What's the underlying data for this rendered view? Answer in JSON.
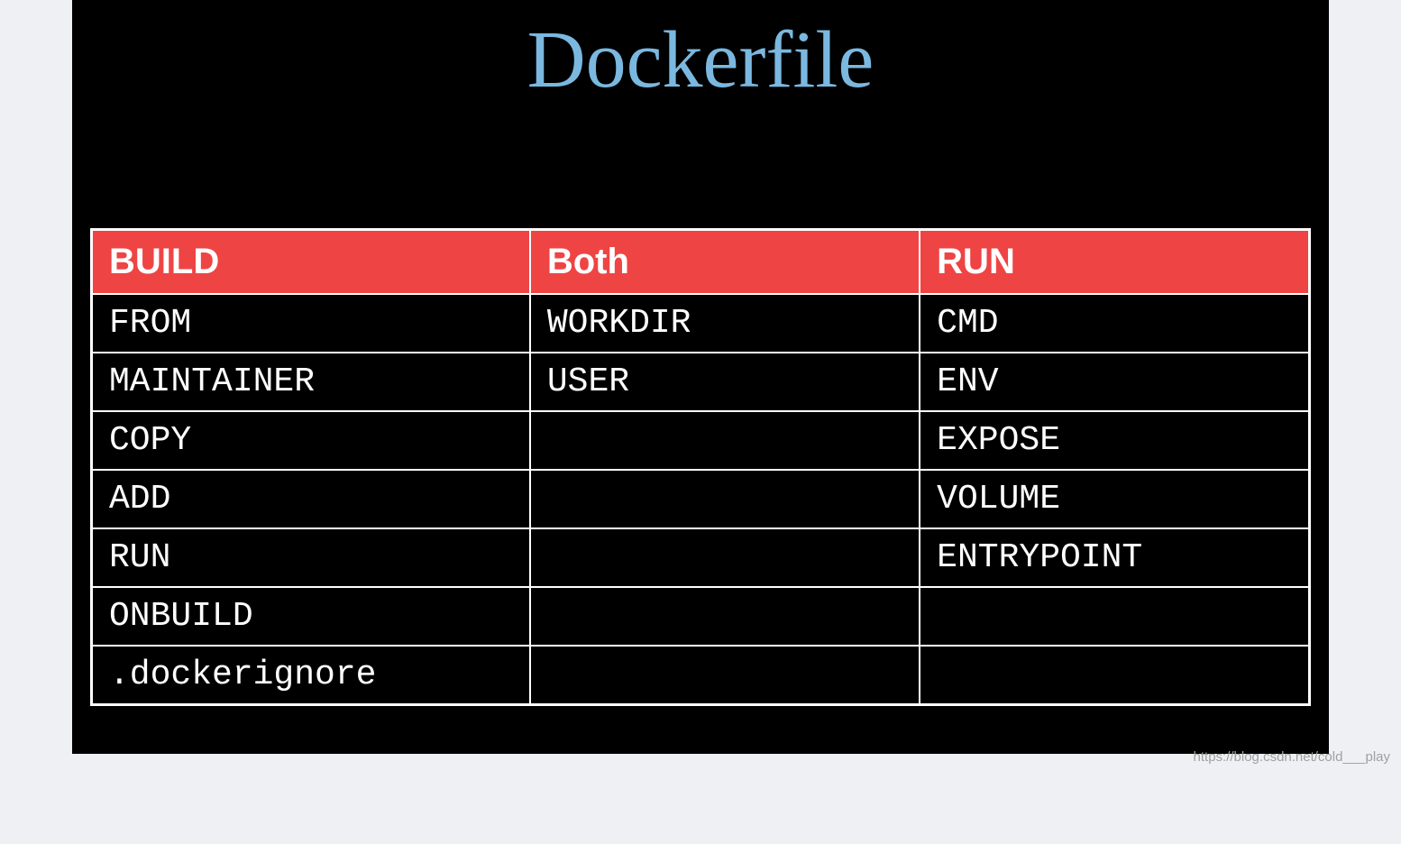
{
  "slide": {
    "title": "Dockerfile",
    "title_color": "#7ab8e0",
    "title_fontsize": 90,
    "title_font": "Georgia, serif",
    "background_color": "#000000"
  },
  "page_background": "#eef0f4",
  "table": {
    "type": "table",
    "header_bg_color": "#ef4444",
    "header_text_color": "#ffffff",
    "header_font": "Arial, sans-serif",
    "header_fontsize": 40,
    "header_fontweight": 700,
    "cell_bg_color": "#000000",
    "cell_text_color": "#ffffff",
    "cell_font": "Courier New, monospace",
    "cell_fontsize": 38,
    "border_color": "#ffffff",
    "border_width": 2,
    "columns": [
      "BUILD",
      "Both",
      "RUN"
    ],
    "column_widths_pct": [
      36,
      32,
      32
    ],
    "rows": [
      [
        "FROM",
        "WORKDIR",
        "CMD"
      ],
      [
        "MAINTAINER",
        "USER",
        "ENV"
      ],
      [
        "COPY",
        "",
        "EXPOSE"
      ],
      [
        "ADD",
        "",
        "VOLUME"
      ],
      [
        "RUN",
        "",
        "ENTRYPOINT"
      ],
      [
        "ONBUILD",
        "",
        ""
      ],
      [
        ".dockerignore",
        "",
        ""
      ]
    ]
  },
  "watermark": "https://blog.csdn.net/cold___play"
}
